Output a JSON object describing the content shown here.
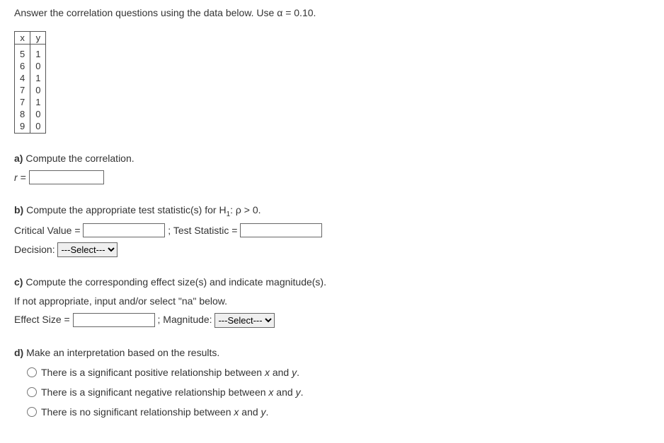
{
  "prompt": "Answer the correlation questions using the data below. Use α = 0.10.",
  "table": {
    "headers": [
      "x",
      "y"
    ],
    "rows": [
      [
        "5",
        "1"
      ],
      [
        "6",
        "0"
      ],
      [
        "4",
        "1"
      ],
      [
        "7",
        "0"
      ],
      [
        "7",
        "1"
      ],
      [
        "8",
        "0"
      ],
      [
        "9",
        "0"
      ]
    ]
  },
  "a": {
    "label": "a)",
    "text": " Compute the correlation.",
    "r_label": "r = "
  },
  "b": {
    "label": "b)",
    "text_pre": " Compute the appropriate test statistic(s) for H",
    "sub": "1",
    "text_post": ": ρ > 0.",
    "crit_label": "Critical Value = ",
    "sep": " ;  Test Statistic = ",
    "decision_label": "Decision: ",
    "select_placeholder": "---Select---"
  },
  "c": {
    "label": "c)",
    "text": " Compute the corresponding effect size(s) and indicate magnitude(s).",
    "hint": "If not appropriate, input and/or select \"na\" below.",
    "eff_label": "Effect Size = ",
    "mag_sep": " ;  Magnitude: ",
    "select_placeholder": "---Select---"
  },
  "d": {
    "label": "d)",
    "text": " Make an interpretation based on the results.",
    "opt1_pre": "There is a significant positive relationship between ",
    "opt2_pre": "There is a significant negative relationship between ",
    "opt3_pre": "There is no significant relationship between ",
    "x": "x",
    "and": " and ",
    "y": "y",
    "period": "."
  }
}
